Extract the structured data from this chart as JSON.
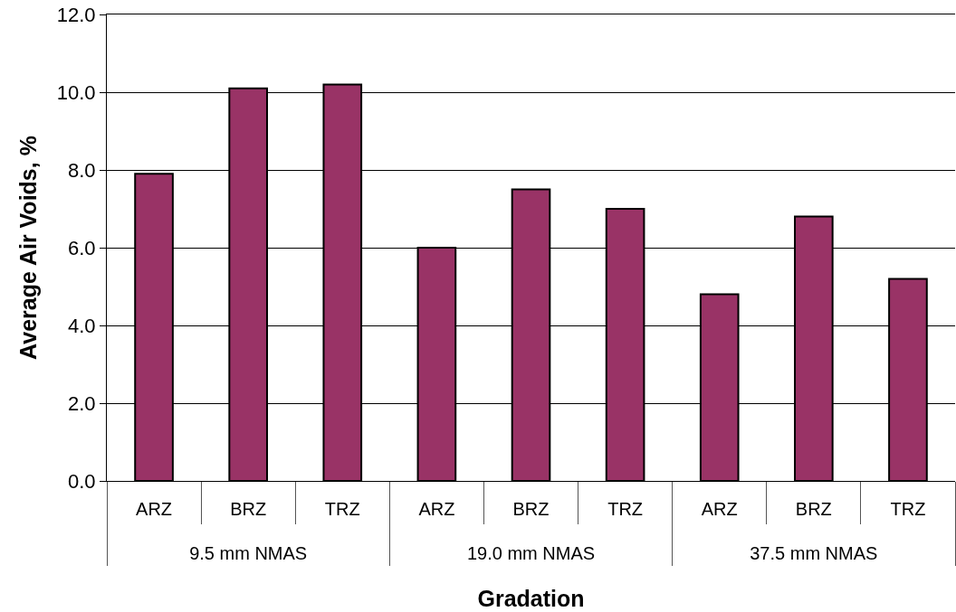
{
  "chart_data": {
    "type": "bar",
    "categories": [
      "ARZ",
      "BRZ",
      "TRZ",
      "ARZ",
      "BRZ",
      "TRZ",
      "ARZ",
      "BRZ",
      "TRZ"
    ],
    "values": [
      7.9,
      10.1,
      10.2,
      6.0,
      7.5,
      7.0,
      4.8,
      6.8,
      5.2
    ],
    "color": "#993366",
    "ylim": [
      0,
      12
    ],
    "yticks": [
      {
        "value": 0,
        "label": "0.0"
      },
      {
        "value": 2,
        "label": "2.0"
      },
      {
        "value": 4,
        "label": "4.0"
      },
      {
        "value": 6,
        "label": "6.0"
      },
      {
        "value": 8,
        "label": "8.0"
      },
      {
        "value": 10,
        "label": "10.0"
      },
      {
        "value": 12,
        "label": "12.0"
      }
    ],
    "ylabel": "Average Air Voids, %",
    "xlabel": "Gradation",
    "annotations": [
      "9.5 mm NMAS",
      "19.0 mm NMAS",
      "37.5 mm NMAS"
    ],
    "grid": "y"
  }
}
